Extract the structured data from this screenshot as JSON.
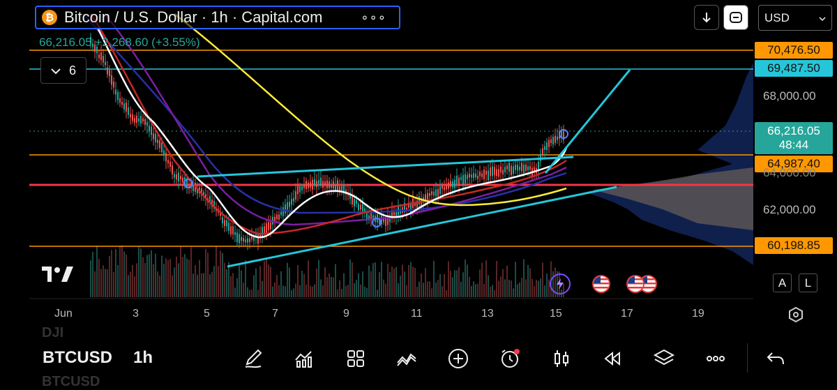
{
  "header": {
    "title": "Bitcoin / U.S. Dollar · 1h · Capital.com",
    "coin_icon_glyph": "₿",
    "more_glyph": "∘∘∘",
    "ohlc_change": "66,216.05 +2,268.60 (+3.55%)",
    "indicator_count": "6"
  },
  "toolbar_right": {
    "download_icon": "download-arrow-icon",
    "fullscreen_icon": "fullscreen-icon",
    "currency": "USD"
  },
  "price_scale": {
    "tags": [
      {
        "label": "70,476.50",
        "color": "#ff9800"
      },
      {
        "label": "69,487.50",
        "color": "#26c6da"
      },
      {
        "label": "64,987.40",
        "color": "#ff9800"
      },
      {
        "label": "60,198.85",
        "color": "#ff9800"
      }
    ],
    "current_price": "66,216.05",
    "countdown": "48:44",
    "current_color": "#26a69a",
    "ticks": [
      "68,000.00",
      "62,000.00"
    ],
    "partial_tick": "64,000.00"
  },
  "time_axis": {
    "labels": [
      "Jun",
      "3",
      "5",
      "7",
      "9",
      "11",
      "13",
      "15",
      "17",
      "19"
    ]
  },
  "overlay_buttons": {
    "auto_scale": "A",
    "log_scale": "L"
  },
  "bottom_bar": {
    "symbol_above": "DJI",
    "symbol": "BTCUSD",
    "symbol_below": "BTCUSD",
    "interval": "1h",
    "tools": [
      "drawing-pen-icon",
      "indicators-icon",
      "layout-grid-icon",
      "chart-type-icon",
      "add-icon",
      "alert-clock-icon",
      "candles-icon",
      "replay-icon",
      "layers-icon",
      "more-icon",
      "undo-icon"
    ]
  },
  "logo": "TradingView",
  "colors": {
    "background": "#000000",
    "up": "#26a69a",
    "down": "#ef5350",
    "horizontal_orange": "#ff9800",
    "horizontal_cyan": "#26c6da",
    "horizontal_red": "#f23645",
    "triangle": "#26c6da"
  }
}
